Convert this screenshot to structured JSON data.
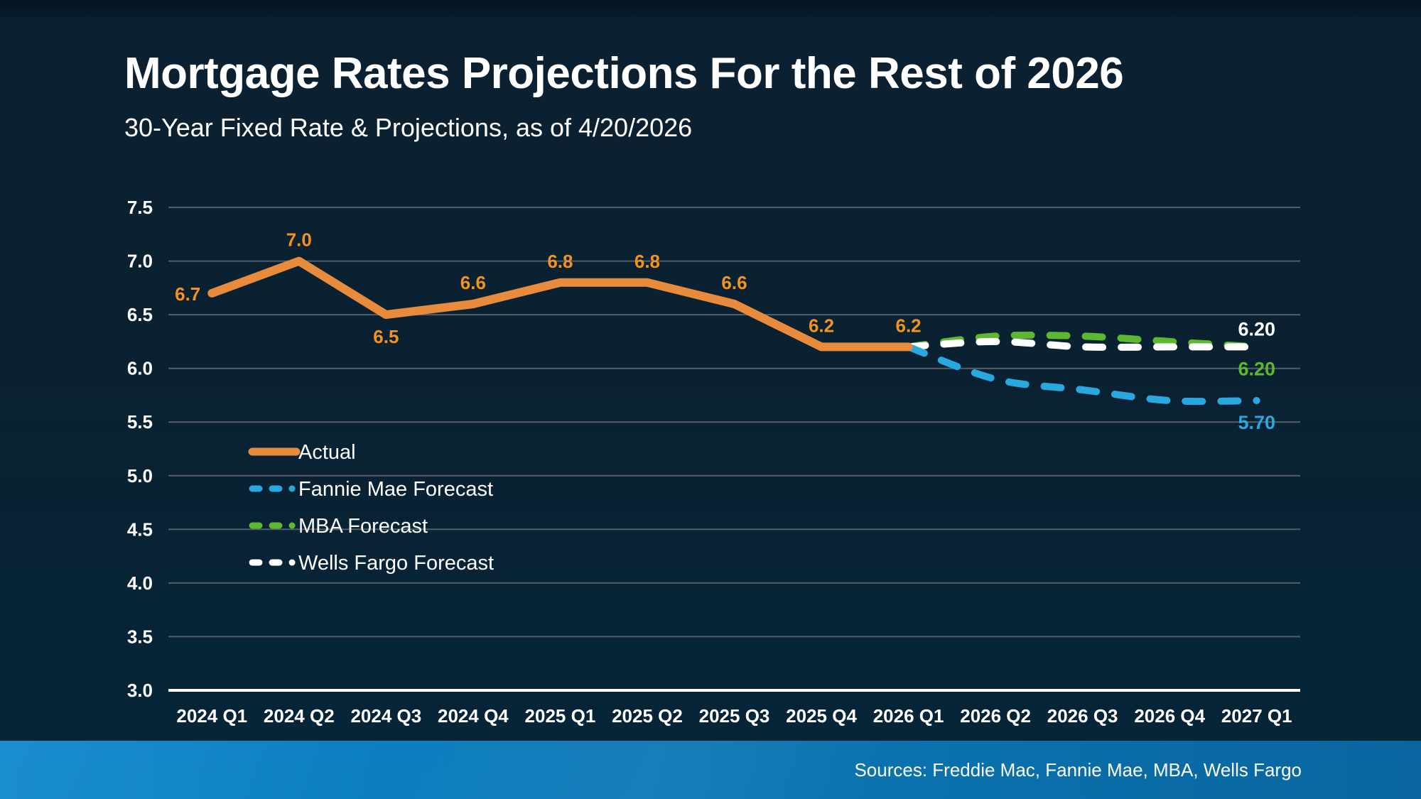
{
  "title": "Mortgage Rates Projections For the Rest of 2026",
  "subtitle": "30-Year Fixed Rate & Projections, as of 4/20/2026",
  "source_note": "Sources: Freddie Mac, Fannie Mae, MBA, Wells Fargo",
  "colors": {
    "background": "#0A2132",
    "gridline": "#555E66",
    "axis_line": "#FFFFFF",
    "actual_line": "#E98B3D",
    "actual_label": "#F3921E",
    "fannie_mae_line": "#29A8E0",
    "mba_line": "#5CB82E",
    "wells_fargo_line": "#FFFFFF",
    "footer_left": "#0D87CB",
    "footer_right": "#0A659E"
  },
  "chart_data": {
    "type": "line",
    "title": "Mortgage Rates Projections For the Rest of 2026",
    "subtitle": "30-Year Fixed Rate & Projections, as of 4/20/2026",
    "xlabel": "",
    "ylabel": "",
    "ylim": [
      3.0,
      7.5
    ],
    "ytick_step": 0.5,
    "grid": true,
    "legend_position": "inside-left",
    "categories": [
      "2024 Q1",
      "2024 Q2",
      "2024 Q3",
      "2024 Q4",
      "2025 Q1",
      "2025 Q2",
      "2025 Q3",
      "2025 Q4",
      "2026 Q1",
      "2026 Q2",
      "2026 Q3",
      "2026 Q4",
      "2027 Q1"
    ],
    "series": [
      {
        "name": "Actual",
        "color": "#E98B3D",
        "label_color": "#F3921E",
        "dash": false,
        "smooth": false,
        "z": 4,
        "values": [
          6.7,
          7.0,
          6.5,
          6.6,
          6.8,
          6.8,
          6.6,
          6.2,
          6.2,
          null,
          null,
          null,
          null
        ],
        "point_labels": [
          "6.7",
          "7.0",
          "6.5",
          "6.6",
          "6.8",
          "6.8",
          "6.6",
          "6.2",
          "6.2",
          null,
          null,
          null,
          null
        ],
        "point_label_positions": [
          "left",
          "above",
          "below",
          "above",
          "above",
          "above",
          "above",
          "above",
          "above",
          null,
          null,
          null,
          null
        ]
      },
      {
        "name": "Fannie Mae Forecast",
        "color": "#29A8E0",
        "dash": true,
        "smooth": true,
        "z": 3,
        "values": [
          null,
          null,
          null,
          null,
          null,
          null,
          null,
          null,
          6.2,
          5.9,
          5.8,
          5.7,
          5.7
        ],
        "end_label": "5.70",
        "end_label_position": "below"
      },
      {
        "name": "MBA Forecast",
        "color": "#5CB82E",
        "dash": true,
        "smooth": true,
        "z": 1,
        "values": [
          null,
          null,
          null,
          null,
          null,
          null,
          null,
          null,
          6.2,
          6.3,
          6.3,
          6.25,
          6.2
        ],
        "end_label": "6.20",
        "end_label_position": "below"
      },
      {
        "name": "Wells Fargo Forecast",
        "color": "#FFFFFF",
        "dash": true,
        "smooth": true,
        "z": 2,
        "values": [
          null,
          null,
          null,
          null,
          null,
          null,
          null,
          null,
          6.2,
          6.25,
          6.2,
          6.2,
          6.2
        ],
        "end_label": "6.20",
        "end_label_position": "above"
      }
    ]
  }
}
